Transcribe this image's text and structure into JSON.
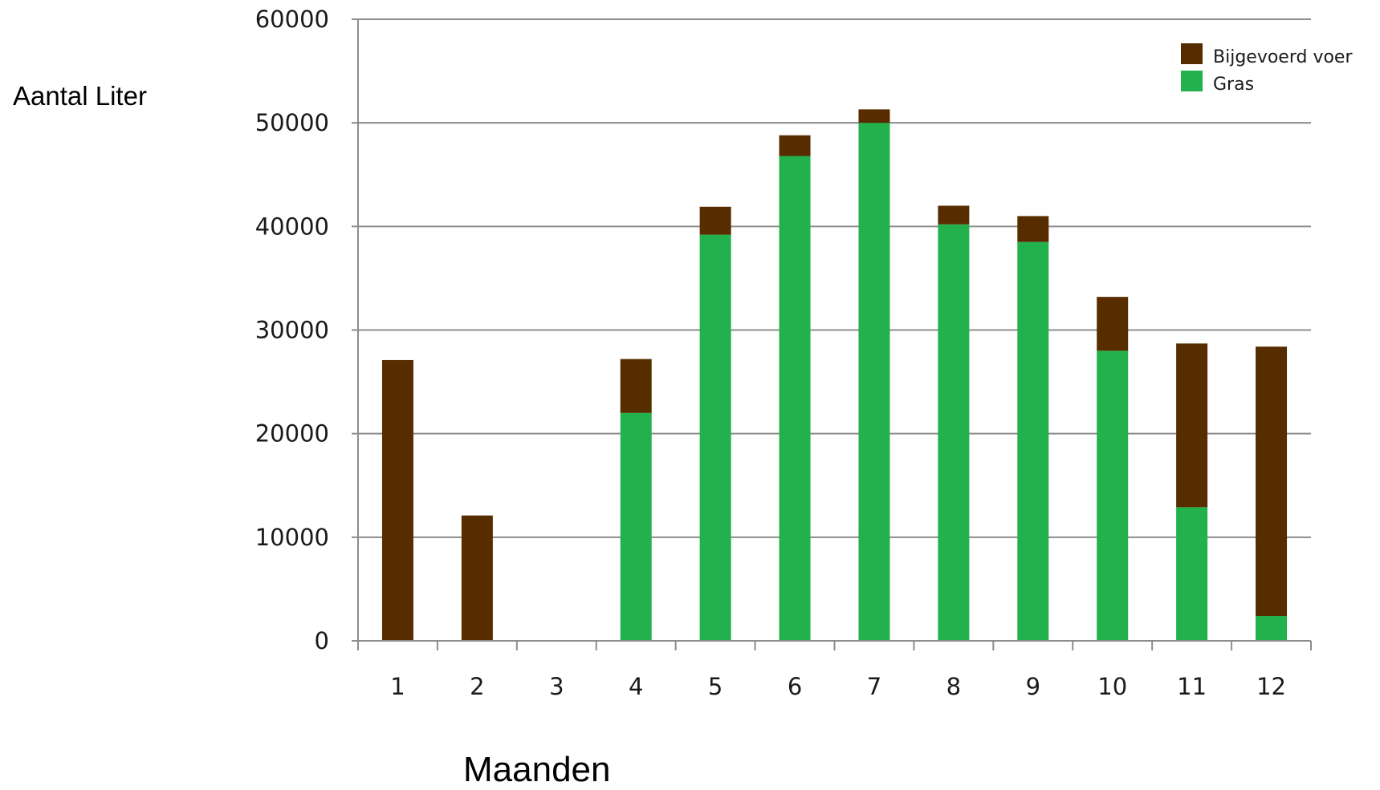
{
  "chart_data": {
    "type": "bar",
    "stacked": true,
    "categories": [
      "1",
      "2",
      "3",
      "4",
      "5",
      "6",
      "7",
      "8",
      "9",
      "10",
      "11",
      "12"
    ],
    "series": [
      {
        "name": "Gras",
        "color": "#23b14d",
        "values": [
          0,
          0,
          0,
          22000,
          39200,
          46800,
          50000,
          40200,
          38500,
          28000,
          12900,
          2400
        ]
      },
      {
        "name": "Bijgevoerd voer",
        "color": "#572d00",
        "values": [
          27100,
          12100,
          0,
          5200,
          2700,
          2000,
          1300,
          1800,
          2500,
          5200,
          15800,
          26000
        ]
      }
    ],
    "xlabel": "Maanden",
    "ylabel": "Aantal Liter",
    "ylim": [
      0,
      60000
    ],
    "yticks": [
      "0",
      "10000",
      "20000",
      "30000",
      "40000",
      "50000",
      "60000"
    ],
    "grid": true,
    "legend_position": "top-right"
  }
}
